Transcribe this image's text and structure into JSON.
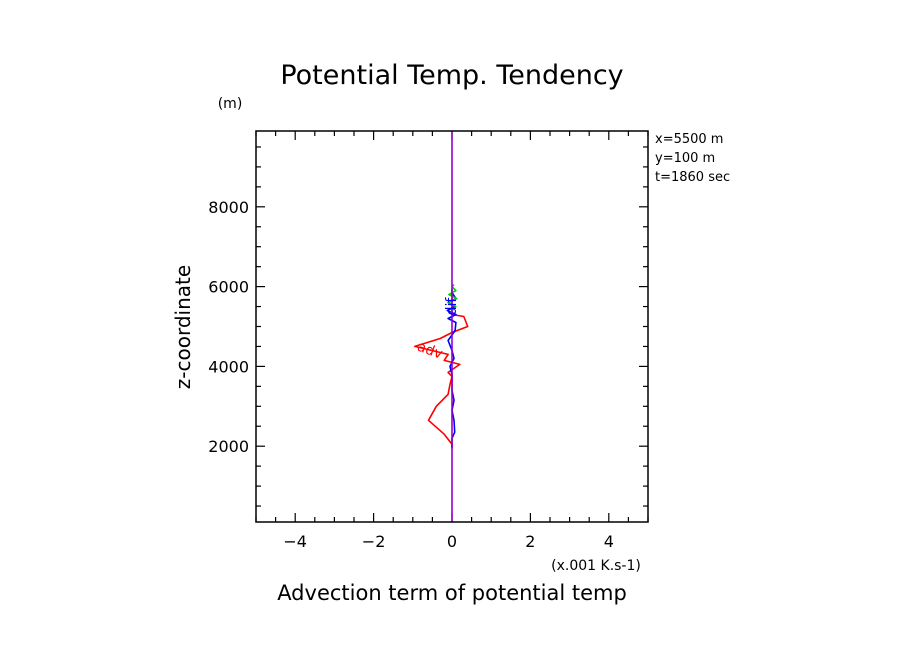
{
  "chart_data": {
    "type": "line",
    "title": "Potential Temp. Tendency",
    "xlabel": "Advection term of potential temp",
    "x_unit": "(x.001 K.s-1)",
    "ylabel": "z-coordinate",
    "y_unit": "(m)",
    "xlim": [
      -5,
      5
    ],
    "ylim": [
      100,
      9900
    ],
    "x_ticks": [
      -4,
      -2,
      0,
      2,
      4
    ],
    "x_tick_labels": [
      "−4",
      "−2",
      "0",
      "2",
      "4"
    ],
    "y_ticks": [
      2000,
      4000,
      6000,
      8000
    ],
    "y_tick_labels": [
      "2000",
      "4000",
      "6000",
      "8000"
    ],
    "grid": false,
    "info": [
      "x=5500 m",
      "y=100 m",
      "t=1860 sec"
    ],
    "series": [
      {
        "name": "adv",
        "color": "#ff0000",
        "points": [
          [
            0,
            1950
          ],
          [
            0,
            2050
          ],
          [
            -0.2,
            2300
          ],
          [
            -0.6,
            2650
          ],
          [
            -0.4,
            3000
          ],
          [
            -0.1,
            3300
          ],
          [
            -0.05,
            3550
          ],
          [
            0,
            3750
          ],
          [
            -0.1,
            3850
          ],
          [
            0.2,
            4050
          ],
          [
            -0.2,
            4150
          ],
          [
            -0.1,
            4300
          ],
          [
            -0.95,
            4500
          ],
          [
            -0.3,
            4700
          ],
          [
            0,
            4850
          ],
          [
            0.4,
            5000
          ],
          [
            0.3,
            5250
          ],
          [
            0,
            5300
          ],
          [
            0,
            5600
          ],
          [
            0,
            5900
          ]
        ]
      },
      {
        "name": "dif",
        "color": "#0000ff",
        "points": [
          [
            0,
            1950
          ],
          [
            0,
            2200
          ],
          [
            0.07,
            2350
          ],
          [
            0.05,
            2650
          ],
          [
            0,
            2900
          ],
          [
            0.05,
            3150
          ],
          [
            0,
            3400
          ],
          [
            0,
            3800
          ],
          [
            -0.05,
            4000
          ],
          [
            0.05,
            4200
          ],
          [
            0,
            4400
          ],
          [
            -0.1,
            4650
          ],
          [
            0.08,
            4900
          ],
          [
            0.1,
            5100
          ],
          [
            -0.1,
            5200
          ],
          [
            0.1,
            5300
          ],
          [
            -0.12,
            5400
          ],
          [
            0.08,
            5500
          ],
          [
            -0.1,
            5600
          ],
          [
            0.1,
            5700
          ],
          [
            0,
            5850
          ],
          [
            0,
            5950
          ]
        ]
      },
      {
        "name": "",
        "color": "#00cc00",
        "points": [
          [
            0,
            5400
          ],
          [
            0.1,
            5500
          ],
          [
            -0.1,
            5600
          ],
          [
            0.12,
            5700
          ],
          [
            -0.08,
            5800
          ],
          [
            0.1,
            5900
          ],
          [
            0,
            6000
          ],
          [
            0.05,
            6050
          ]
        ]
      },
      {
        "name": "",
        "color": "#9900cc",
        "points": [
          [
            0,
            100
          ],
          [
            0,
            9900
          ]
        ]
      }
    ],
    "series_labels": [
      {
        "text": "adv",
        "color": "#ff0000",
        "x": -0.6,
        "y": 4300
      },
      {
        "text": "dif",
        "color": "#0000ff",
        "x": 0.1,
        "y": 5500
      }
    ]
  }
}
